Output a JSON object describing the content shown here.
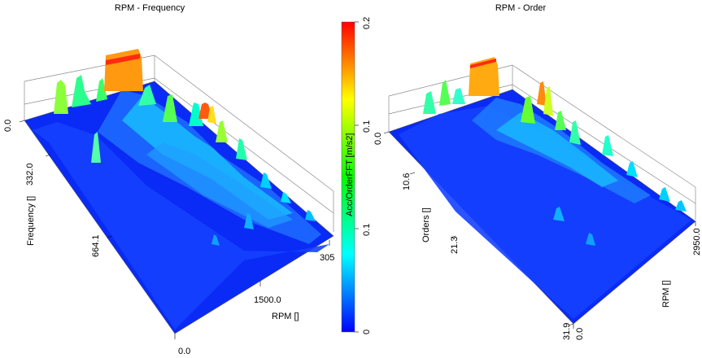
{
  "chart_data": [
    {
      "type": "surface3d",
      "title": "RPM - Frequency",
      "xlabel": "RPM []",
      "ylabel": "Frequency []",
      "x_ticks": [
        "0.0",
        "1500.0",
        "305"
      ],
      "y_ticks": [
        "0.0",
        "332.0",
        "664.1"
      ],
      "xlim": [
        0,
        3050
      ],
      "ylim": [
        0,
        996
      ],
      "zlim": [
        0,
        0.2
      ],
      "series": [
        {
          "points": [
            {
              "x": 0,
              "y": 0,
              "z": 0.2
            },
            {
              "x": 300,
              "y": 0,
              "z": 0.12
            },
            {
              "x": 600,
              "y": 0,
              "z": 0.12
            },
            {
              "x": 800,
              "y": 60,
              "z": 0.16
            },
            {
              "x": 1500,
              "y": 330,
              "z": 0.15
            },
            {
              "x": 1800,
              "y": 320,
              "z": 0.13
            },
            {
              "x": 2100,
              "y": 430,
              "z": 0.1
            },
            {
              "x": 2400,
              "y": 500,
              "z": 0.07
            },
            {
              "x": 2700,
              "y": 560,
              "z": 0.05
            },
            {
              "x": 3000,
              "y": 600,
              "z": 0.04
            }
          ]
        }
      ]
    },
    {
      "type": "surface3d",
      "title": "RPM - Order",
      "xlabel": "RPM []",
      "ylabel": "Orders []",
      "x_ticks": [
        "0.0",
        "2950.0"
      ],
      "y_ticks": [
        "0.0",
        "10.6",
        "21.3",
        "31.9"
      ],
      "xlim": [
        0,
        2950
      ],
      "ylim": [
        0,
        31.9
      ],
      "zlim": [
        0,
        0.2
      ],
      "series": [
        {
          "points": [
            {
              "x": 0,
              "y": 0,
              "z": 0.12
            },
            {
              "x": 400,
              "y": 0,
              "z": 0.08
            },
            {
              "x": 700,
              "y": 0,
              "z": 0.1
            },
            {
              "x": 1000,
              "y": 0,
              "z": 0.17
            },
            {
              "x": 1300,
              "y": 2,
              "z": 0.12
            },
            {
              "x": 1700,
              "y": 4,
              "z": 0.1
            },
            {
              "x": 2100,
              "y": 6,
              "z": 0.07
            },
            {
              "x": 2500,
              "y": 8,
              "z": 0.05
            },
            {
              "x": 2900,
              "y": 10,
              "z": 0.04
            }
          ]
        }
      ]
    }
  ],
  "colorbar": {
    "label": "Acc/OrderFFT [m/s2]",
    "ticks": [
      "0",
      "0.1",
      "0.1",
      "0.2"
    ],
    "colors": [
      "#0000ff",
      "#00ffff",
      "#00ff00",
      "#ffff00",
      "#ff0000"
    ]
  }
}
